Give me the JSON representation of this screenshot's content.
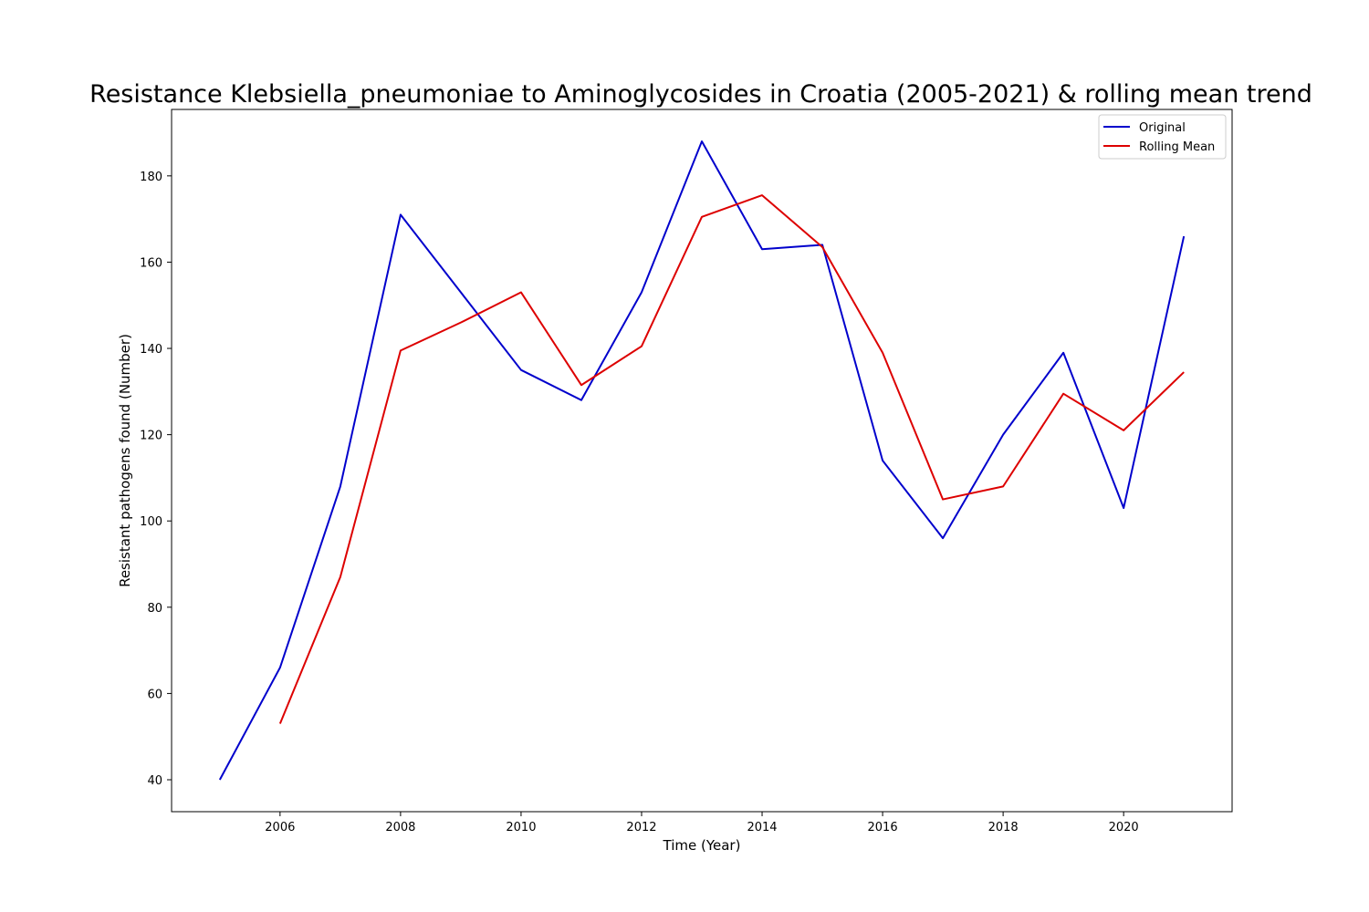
{
  "chart_data": {
    "type": "line",
    "title": "Resistance Klebsiella_pneumoniae to Aminoglycosides in Croatia (2005-2021) & rolling mean trend",
    "xlabel": "Time (Year)",
    "ylabel": "Resistant pathogens found (Number)",
    "x": [
      2005,
      2006,
      2007,
      2008,
      2009,
      2010,
      2011,
      2012,
      2013,
      2014,
      2015,
      2016,
      2017,
      2018,
      2019,
      2020,
      2021
    ],
    "series": [
      {
        "name": "Original",
        "color": "#0000cc",
        "values": [
          40,
          66,
          108,
          171,
          153,
          135,
          128,
          153,
          188,
          163,
          164,
          114,
          96,
          120,
          139,
          103,
          166
        ]
      },
      {
        "name": "Rolling Mean",
        "color": "#dd0000",
        "values": [
          null,
          53,
          87,
          139.5,
          146,
          153,
          131.5,
          140.5,
          170.5,
          175.5,
          163.5,
          139,
          105,
          108,
          129.5,
          121,
          134.5
        ]
      }
    ],
    "xlim": [
      2004.2,
      2021.8
    ],
    "ylim": [
      32.6,
      195.4
    ],
    "xticks": [
      2006,
      2008,
      2010,
      2012,
      2014,
      2016,
      2018,
      2020
    ],
    "yticks": [
      40,
      60,
      80,
      100,
      120,
      140,
      160,
      180
    ],
    "grid": false,
    "legend_position": "top-right"
  }
}
